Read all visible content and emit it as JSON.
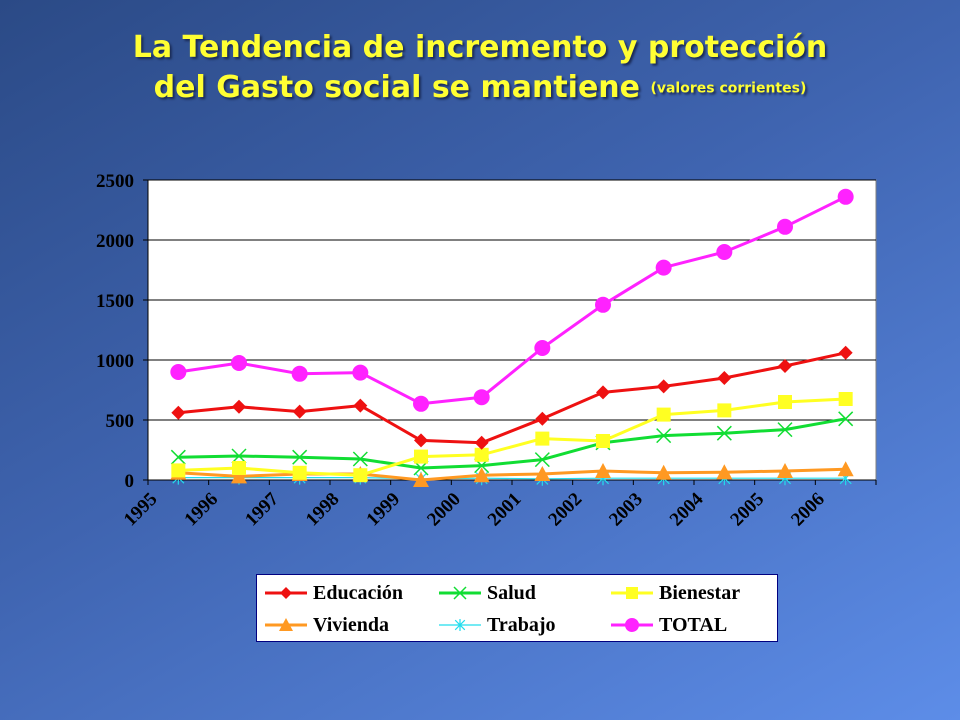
{
  "title": {
    "line1": "La Tendencia de incremento y protección",
    "line2": "del Gasto social se mantiene",
    "note": "(valores corrientes)"
  },
  "chart_data": {
    "type": "line",
    "categories": [
      "1995",
      "1996",
      "1997",
      "1998",
      "1999",
      "2000",
      "2001",
      "2002",
      "2003",
      "2004",
      "2005",
      "2006"
    ],
    "ylim": [
      0,
      2500
    ],
    "yticks": [
      0,
      500,
      1000,
      1500,
      2000,
      2500
    ],
    "grid": true,
    "legend_position": "bottom",
    "series": [
      {
        "name": "Educación",
        "color": "#ee1111",
        "marker": "diamond",
        "values": [
          560,
          610,
          570,
          620,
          330,
          310,
          510,
          730,
          780,
          850,
          950,
          1060
        ]
      },
      {
        "name": "Salud",
        "color": "#11dd33",
        "marker": "x",
        "values": [
          190,
          200,
          190,
          175,
          100,
          120,
          170,
          310,
          370,
          390,
          420,
          510
        ]
      },
      {
        "name": "Bienestar",
        "color": "#ffff22",
        "marker": "square",
        "values": [
          80,
          100,
          60,
          40,
          195,
          210,
          345,
          325,
          545,
          580,
          650,
          675
        ]
      },
      {
        "name": "Vivienda",
        "color": "#ff9922",
        "marker": "triangle",
        "values": [
          60,
          30,
          50,
          50,
          0,
          40,
          50,
          75,
          60,
          65,
          75,
          90
        ]
      },
      {
        "name": "Trabajo",
        "color": "#22ddee",
        "marker": "star",
        "values": [
          20,
          20,
          20,
          20,
          10,
          15,
          10,
          15,
          15,
          15,
          15,
          15
        ]
      },
      {
        "name": "TOTAL",
        "color": "#ff22ff",
        "marker": "circle",
        "values": [
          900,
          975,
          885,
          895,
          635,
          690,
          1100,
          1460,
          1770,
          1900,
          2110,
          2360
        ]
      }
    ]
  }
}
